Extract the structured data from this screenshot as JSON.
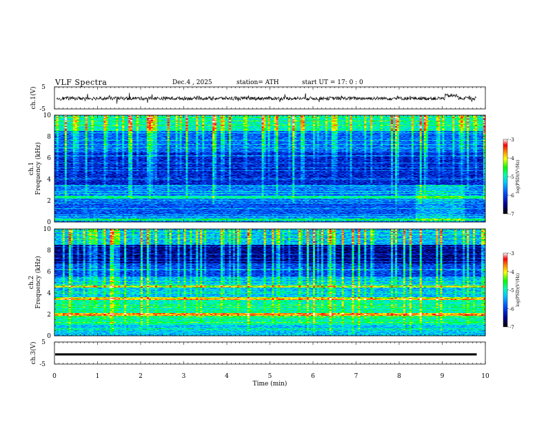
{
  "header": {
    "title": "VLF  Spectra",
    "date": "Dec.4   , 2025",
    "station": "station= ATH",
    "start": "start  UT  =    17: 0   : 0"
  },
  "chart_data": {
    "type": "heatmap",
    "x": {
      "label": "Time  (min)",
      "range": [
        0,
        10
      ],
      "ticks": [
        "0",
        "1",
        "2",
        "3",
        "4",
        "5",
        "6",
        "7",
        "8",
        "9",
        "10"
      ]
    },
    "panels": [
      {
        "name": "ch.1(V)",
        "type": "line",
        "ylim": [
          -5,
          5
        ],
        "yticks": [
          "5",
          "-5"
        ]
      },
      {
        "name": "ch.1",
        "ylabel": "Frequency  (kHz)",
        "type": "heatmap",
        "ylim": [
          0,
          10
        ],
        "yticks": [
          "0",
          "2",
          "4",
          "6",
          "8",
          "10"
        ]
      },
      {
        "name": "ch.2",
        "ylabel": "Frequency  (kHz)",
        "type": "heatmap",
        "ylim": [
          0,
          10
        ],
        "yticks": [
          "0",
          "2",
          "4",
          "6",
          "8",
          "10"
        ]
      },
      {
        "name": "ch.3(V)",
        "type": "line",
        "ylim": [
          -5,
          5
        ],
        "yticks": [
          "5",
          "-5"
        ]
      }
    ],
    "colorbar": {
      "label": "log(PSD)(V²/Hz)",
      "range": [
        -7,
        -3
      ],
      "ticks": [
        "-3",
        "-4",
        "-5",
        "-6",
        "-7"
      ]
    }
  }
}
